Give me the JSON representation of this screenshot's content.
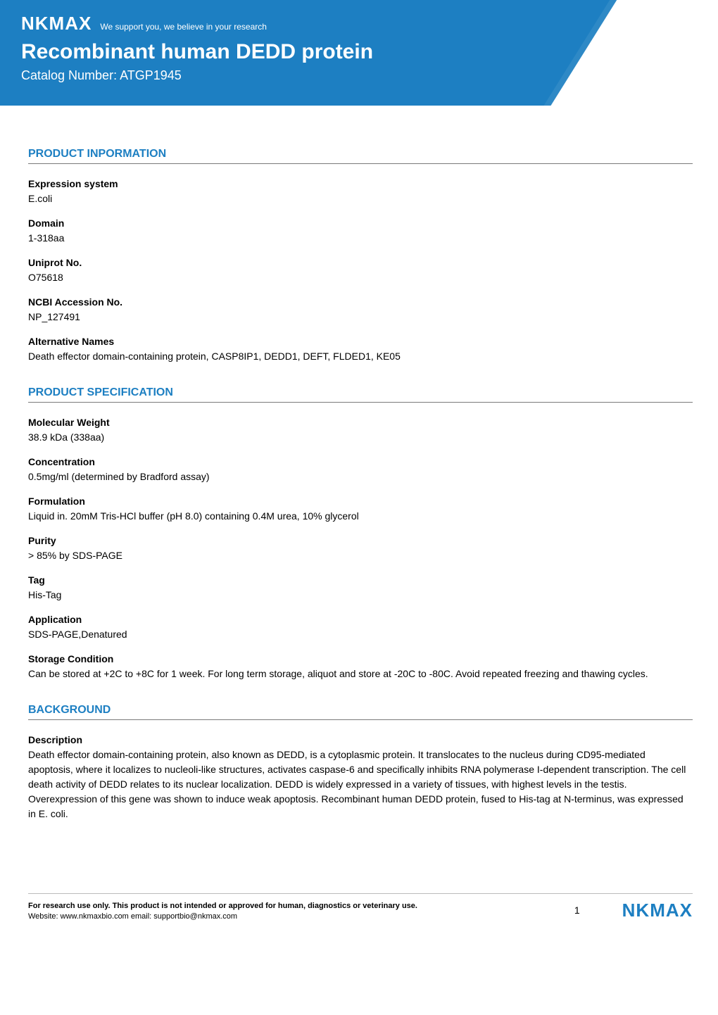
{
  "header": {
    "logo": "NKMAX",
    "tagline": "We support you, we believe in your research",
    "title": "Recombinant human DEDD protein",
    "catalog_label": "Catalog Number: ",
    "catalog_value": "ATGP1945",
    "banner_color": "#1d7fc2",
    "text_color": "#ffffff"
  },
  "sections": {
    "product_info": {
      "title": "PRODUCT INPORMATION",
      "fields": {
        "expression_system": {
          "label": "Expression system",
          "value": "E.coli"
        },
        "domain": {
          "label": "Domain",
          "value": "1-318aa"
        },
        "uniprot": {
          "label": "Uniprot No.",
          "value": "O75618"
        },
        "ncbi": {
          "label": "NCBI Accession No.",
          "value": "NP_127491"
        },
        "alt_names": {
          "label": "Alternative Names",
          "value": "Death effector domain-containing protein, CASP8IP1, DEDD1, DEFT, FLDED1, KE05"
        }
      }
    },
    "product_spec": {
      "title": "PRODUCT SPECIFICATION",
      "fields": {
        "mw": {
          "label": "Molecular Weight",
          "value": "38.9 kDa (338aa)"
        },
        "conc": {
          "label": "Concentration",
          "value": "0.5mg/ml (determined by Bradford assay)"
        },
        "formulation": {
          "label": "Formulation",
          "value": "Liquid in. 20mM Tris-HCl buffer (pH 8.0) containing 0.4M urea, 10% glycerol"
        },
        "purity": {
          "label": "Purity",
          "value": "> 85% by SDS-PAGE"
        },
        "tag": {
          "label": "Tag",
          "value": "His-Tag"
        },
        "application": {
          "label": "Application",
          "value": "SDS-PAGE,Denatured"
        },
        "storage": {
          "label": "Storage Condition",
          "value": "Can be stored at +2C to +8C for 1 week. For long term storage, aliquot and store at -20C to -80C. Avoid repeated freezing and thawing cycles."
        }
      }
    },
    "background": {
      "title": "BACKGROUND",
      "fields": {
        "description": {
          "label": "Description",
          "value": "Death effector domain-containing protein, also known as DEDD, is a cytoplasmic protein. It translocates to the nucleus during CD95-mediated apoptosis, where it localizes to nucleoli-like structures, activates caspase-6 and specifically inhibits RNA polymerase I-dependent transcription. The cell death activity of DEDD relates to its nuclear localization. DEDD is widely expressed in a variety of tissues, with highest levels in the testis. Overexpression of this gene was shown to induce weak apoptosis. Recombinant human DEDD protein, fused to His-tag at N-terminus, was expressed in E. coli."
        }
      }
    }
  },
  "footer": {
    "line1": "For research use only. This product is not intended or approved for human, diagnostics or veterinary use.",
    "line2": "Website: www.nkmaxbio.com    email: supportbio@nkmax.com",
    "page": "1",
    "logo": "NKMAX",
    "logo_color": "#1d7fc2"
  },
  "style": {
    "section_title_color": "#1d7fc2",
    "section_title_fontsize": 16,
    "body_fontsize": 14,
    "rule_color": "#7a7a7a"
  }
}
